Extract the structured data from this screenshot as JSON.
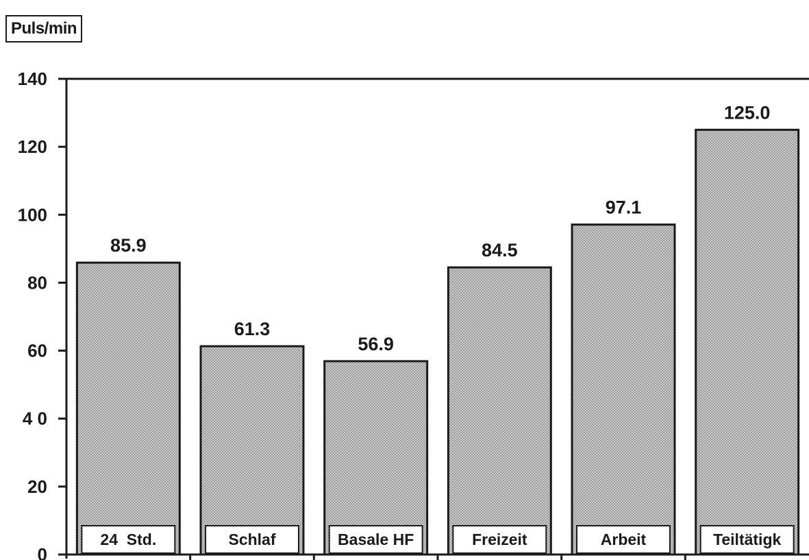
{
  "chart_data": {
    "type": "bar",
    "ylabel": "Puls/min",
    "categories": [
      "24  Std.",
      "Schlaf",
      "Basale HF",
      "Freizeit",
      "Arbeit",
      "Teiltätigk"
    ],
    "values": [
      85.9,
      61.3,
      56.9,
      84.5,
      97.1,
      125.0
    ],
    "value_labels": [
      "85.9",
      "61.3",
      "56.9",
      "84.5",
      "97.1",
      "125.0"
    ],
    "ylim": [
      0,
      140
    ],
    "yticks": [
      0,
      20,
      40,
      60,
      80,
      100,
      120,
      140
    ],
    "ytick_labels": [
      "0",
      "20",
      "4 0",
      "60",
      "80",
      "100",
      "120",
      "140"
    ],
    "grid": false,
    "bar_fill": "dotted-gray",
    "colors": {
      "ink": "#1a1a1a",
      "bar_base": "#9a9a9a",
      "bar_dot": "#f2f2f2"
    }
  }
}
